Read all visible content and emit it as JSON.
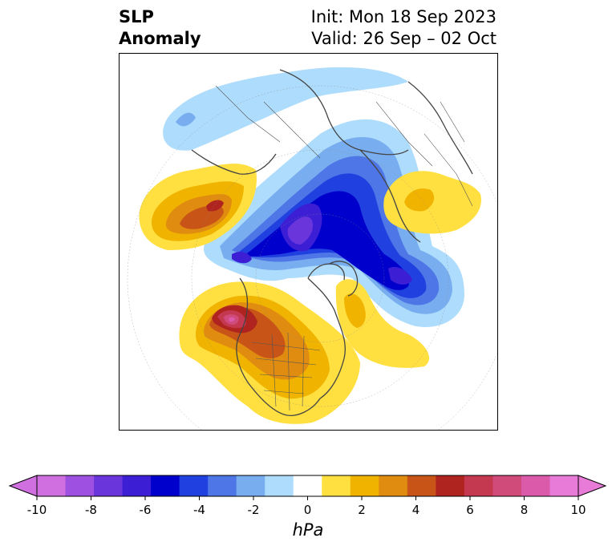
{
  "header": {
    "title_line1": "SLP",
    "title_line2": "Anomaly",
    "init_line": "Init: Mon 18 Sep 2023",
    "valid_line": "Valid: 26 Sep – 02 Oct"
  },
  "map": {
    "projection": "north-polar-stereographic",
    "features": [
      "coastlines",
      "country-borders",
      "us-state-borders",
      "graticule"
    ],
    "anomalies": [
      {
        "region": "gulf-of-alaska-us-west",
        "sign": "positive",
        "peak_hpa": 8
      },
      {
        "region": "canada-central-us",
        "sign": "positive",
        "peak_hpa": 4
      },
      {
        "region": "bering-east-siberia",
        "sign": "positive",
        "peak_hpa": 6
      },
      {
        "region": "arctic-central",
        "sign": "negative",
        "peak_hpa": -8
      },
      {
        "region": "scandinavia-north-atlantic",
        "sign": "negative",
        "peak_hpa": -8
      },
      {
        "region": "central-asia",
        "sign": "positive",
        "peak_hpa": 2
      },
      {
        "region": "greenland-east-atlantic",
        "sign": "positive",
        "peak_hpa": 2
      }
    ]
  },
  "colorbar": {
    "label": "hPa",
    "levels": [
      -10,
      -9,
      -8,
      -7,
      -6,
      -5,
      -4,
      -3,
      -2,
      -1,
      1,
      2,
      3,
      4,
      5,
      6,
      7,
      8,
      9,
      10
    ],
    "colors": [
      "#d070e0",
      "#9e50e0",
      "#6a36dc",
      "#3c1ed4",
      "#0000cd",
      "#2040e0",
      "#4e76e6",
      "#78aef0",
      "#aedcfc",
      "#ffffff",
      "#ffe040",
      "#f0b400",
      "#e08c10",
      "#c85418",
      "#b02420",
      "#c43850",
      "#d04a7a",
      "#dc5aaa",
      "#e87ad8"
    ],
    "tick_labels": [
      "-10",
      "-8",
      "-6",
      "-4",
      "-2",
      "0",
      "2",
      "4",
      "6",
      "8",
      "10"
    ],
    "extend_colors": {
      "min": "#d070e0",
      "max": "#e87ad8"
    }
  }
}
